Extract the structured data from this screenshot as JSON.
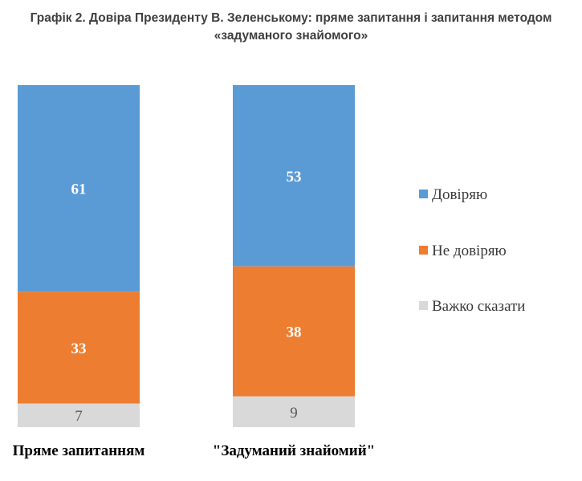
{
  "chart_data": {
    "type": "bar",
    "stacked": true,
    "percent_stacked": true,
    "title_lines": [
      "Графік 2. Довіра Президенту В. Зеленському: пряме запитання і запитання методом",
      "«задуманого знайомого»"
    ],
    "categories": [
      "Пряме запитанням",
      "\"Задуманий знайомий\""
    ],
    "series": [
      {
        "name": "Довіряю",
        "color": "#5b9bd5",
        "values": [
          61,
          53
        ]
      },
      {
        "name": "Не довіряю",
        "color": "#ed7d31",
        "values": [
          33,
          38
        ]
      },
      {
        "name": "Важко сказати",
        "color": "#d9d9d9",
        "values": [
          7,
          9
        ]
      }
    ],
    "legend_position": "right",
    "grid": false
  }
}
